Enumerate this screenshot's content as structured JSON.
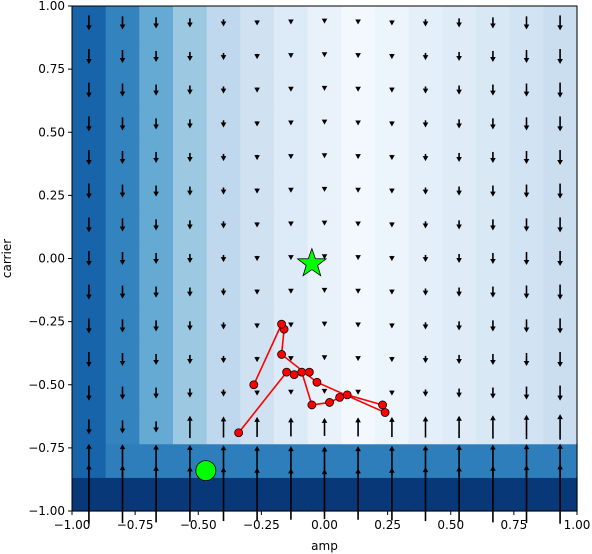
{
  "chart_data": {
    "type": "quiver-heatmap",
    "title": "",
    "xlabel": "amp",
    "ylabel": "carrier",
    "xlim": [
      -1.0,
      1.0
    ],
    "ylim": [
      -1.0,
      1.0
    ],
    "xticks": [
      "−1.00",
      "−0.75",
      "−0.50",
      "−0.25",
      "0.00",
      "0.25",
      "0.50",
      "0.75",
      "1.00"
    ],
    "yticks": [
      "−1.00",
      "−0.75",
      "−0.50",
      "−0.25",
      "0.00",
      "0.25",
      "0.50",
      "0.75",
      "1.00"
    ],
    "colormap": "Blues",
    "column_shades": [
      0.8,
      0.68,
      0.52,
      0.38,
      0.27,
      0.2,
      0.13,
      0.07,
      0.02,
      0.05,
      0.09,
      0.12,
      0.15,
      0.19,
      0.23
    ],
    "bottom_band_shades": [
      0.97,
      0.7
    ],
    "quiver_x": [
      -0.933,
      -0.8,
      -0.667,
      -0.533,
      -0.4,
      -0.267,
      -0.133,
      0.0,
      0.133,
      0.267,
      0.4,
      0.533,
      0.667,
      0.8,
      0.933
    ],
    "quiver_y": [
      -0.933,
      -0.8,
      -0.667,
      -0.533,
      -0.4,
      -0.267,
      -0.133,
      0.0,
      0.133,
      0.267,
      0.4,
      0.533,
      0.667,
      0.8,
      0.933
    ],
    "trajectory": {
      "color": "#ff0000",
      "points": [
        [
          -0.34,
          -0.69
        ],
        [
          -0.15,
          -0.45
        ],
        [
          -0.12,
          -0.46
        ],
        [
          -0.06,
          -0.45
        ],
        [
          -0.09,
          -0.45
        ],
        [
          -0.05,
          -0.58
        ],
        [
          0.02,
          -0.57
        ],
        [
          0.06,
          -0.55
        ],
        [
          0.09,
          -0.54
        ],
        [
          0.23,
          -0.58
        ],
        [
          0.24,
          -0.61
        ],
        [
          -0.03,
          -0.49
        ],
        [
          -0.17,
          -0.38
        ],
        [
          -0.16,
          -0.28
        ],
        [
          -0.17,
          -0.26
        ],
        [
          -0.28,
          -0.5
        ]
      ]
    },
    "start_marker": {
      "x": -0.47,
      "y": -0.84,
      "shape": "circle",
      "color": "#00ff00"
    },
    "goal_marker": {
      "x": -0.05,
      "y": -0.02,
      "shape": "star",
      "color": "#00ff00"
    },
    "grid": false,
    "legend": "none"
  }
}
